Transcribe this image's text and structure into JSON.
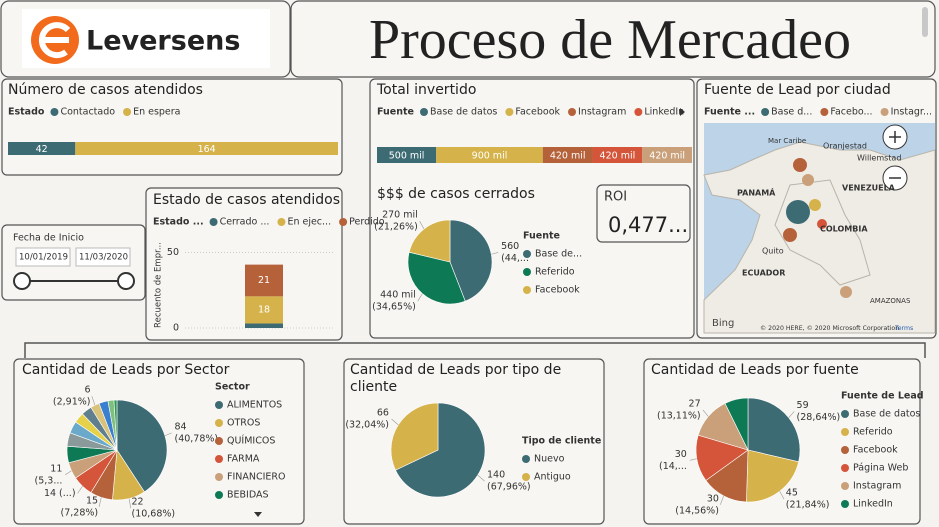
{
  "header": {
    "logo_text": "Leversens",
    "title": "Proceso de Mercadeo"
  },
  "slicer": {
    "title": "Fecha de Inicio",
    "start": "10/01/2019",
    "end": "11/03/2020"
  },
  "roi_card": {
    "title": "ROI",
    "value": "0,477..."
  },
  "map": {
    "title": "Fuente de Lead por ciudad",
    "legend_title": "Fuente ...",
    "legend": [
      {
        "name": "Base d...",
        "color": "#3d6b73"
      },
      {
        "name": "Facebo...",
        "color": "#b5613a"
      },
      {
        "name": "Instagr...",
        "color": "#c9a07a"
      }
    ],
    "labels": [
      "Mar Caribe",
      "Oranjestad",
      "Willemstad",
      "PANAMÁ",
      "VENEZUELA",
      "COLOMBIA",
      "Quito",
      "ECUADOR",
      "AMAZONAS"
    ],
    "brand": "Bing",
    "copyright": "© 2020 HERE, © 2020 Microsoft Corporation",
    "terms": "Terms"
  },
  "chart_data": [
    {
      "type": "bar",
      "orientation": "horizontal",
      "stacked": true,
      "title": "Número de casos atendidos",
      "legend_title": "Estado",
      "series": [
        {
          "name": "Contactado",
          "color": "#3d6b73",
          "values": [
            42
          ]
        },
        {
          "name": "En espera",
          "color": "#d5b24a",
          "values": [
            164
          ]
        }
      ]
    },
    {
      "type": "bar",
      "orientation": "horizontal",
      "stacked": true,
      "title": "Total invertido",
      "legend_title": "Fuente",
      "series": [
        {
          "name": "Base de datos",
          "color": "#3d6b73",
          "values": [
            500000
          ],
          "value_labels": [
            "500 mil"
          ]
        },
        {
          "name": "Facebook",
          "color": "#d5b24a",
          "values": [
            900000
          ],
          "value_labels": [
            "900 mil"
          ]
        },
        {
          "name": "Instagram",
          "color": "#b5613a",
          "values": [
            420000
          ],
          "value_labels": [
            "420 mil"
          ]
        },
        {
          "name": "LinkedIn",
          "color": "#d4553a",
          "values": [
            420000
          ],
          "value_labels": [
            "420 mil"
          ]
        },
        {
          "name": null,
          "color": "#c9a07a",
          "values": [
            420000
          ],
          "value_labels": [
            "420 mil"
          ]
        }
      ]
    },
    {
      "type": "bar",
      "stacked": true,
      "title": "Estado de casos atendidos",
      "legend_title": "Estado ...",
      "y_label": "Recuento de Empr...",
      "categories": [
        null
      ],
      "ylim": [
        0,
        55
      ],
      "yticks": [
        0,
        50
      ],
      "series": [
        {
          "name": "Cerrado ...",
          "color": "#3d6b73",
          "values": [
            3
          ]
        },
        {
          "name": "En ejec...",
          "color": "#d5b24a",
          "values": [
            18
          ]
        },
        {
          "name": "Perdido",
          "color": "#b5613a",
          "values": [
            21
          ]
        }
      ]
    },
    {
      "type": "pie",
      "title": "$$$ de casos cerrados",
      "legend_title": "Fuente",
      "categories": [
        "Base de...",
        "Referido",
        "Facebook"
      ],
      "colors": [
        "#3d6b73",
        "#0e7a55",
        "#d5b24a"
      ],
      "values": [
        560000,
        440000,
        270000
      ],
      "value_labels": [
        "560",
        "440 mil",
        "270 mil"
      ],
      "percent_labels": [
        "(44,...",
        "(34,65%)",
        "(21,26%)"
      ]
    },
    {
      "type": "pie",
      "title": "Cantidad de Leads por Sector",
      "legend_title": "Sector",
      "categories": [
        "ALIMENTOS",
        "OTROS",
        "QUÍMICOS",
        "FARMA",
        "FINANCIERO",
        "BEBIDAS",
        null,
        null,
        null,
        null,
        null,
        null,
        null,
        null
      ],
      "colors": [
        "#3d6b73",
        "#d5b24a",
        "#b5613a",
        "#d4553a",
        "#c9a07a",
        "#0e7a55",
        "#8a9a9a",
        "#6aa9c9",
        "#e6d24a",
        "#5f7f8f",
        "#d9c27a",
        "#3a7fd0",
        "#7fbf7f",
        "#2e9a4e"
      ],
      "values": [
        84,
        22,
        15,
        14,
        11,
        11,
        9,
        8,
        7,
        7,
        6,
        6,
        4,
        2
      ],
      "value_labels": [
        "84",
        "22",
        "15",
        "14 (...)",
        "11",
        null,
        null,
        null,
        null,
        null,
        "6",
        null,
        null,
        null
      ],
      "percent_labels": [
        "(40,78%)",
        "(10,68%)",
        "(7,28%)",
        null,
        "(5,3...",
        null,
        null,
        null,
        null,
        null,
        "(2,91%)",
        null,
        null,
        null
      ]
    },
    {
      "type": "pie",
      "title": "Cantidad de Leads por tipo de cliente",
      "legend_title": "Tipo de cliente",
      "categories": [
        "Nuevo",
        "Antiguo"
      ],
      "colors": [
        "#3d6b73",
        "#d5b24a"
      ],
      "values": [
        140,
        66
      ],
      "percent_labels": [
        "(67,96%)",
        "(32,04%)"
      ]
    },
    {
      "type": "pie",
      "title": "Cantidad de Leads por fuente",
      "legend_title": "Fuente de Lead",
      "categories": [
        "Base de datos",
        "Referido",
        "Facebook",
        "Página Web",
        "Instagram",
        "LinkedIn"
      ],
      "colors": [
        "#3d6b73",
        "#d5b24a",
        "#b5613a",
        "#d4553a",
        "#c9a07a",
        "#0e7a55"
      ],
      "values": [
        59,
        45,
        30,
        30,
        27,
        15
      ],
      "value_labels": [
        "59",
        "45",
        "30",
        "30",
        "27",
        null
      ],
      "percent_labels": [
        "(28,64%)",
        "(21,84%)",
        "(14,56%)",
        "(14,...",
        "(13,11%)",
        null
      ]
    }
  ]
}
